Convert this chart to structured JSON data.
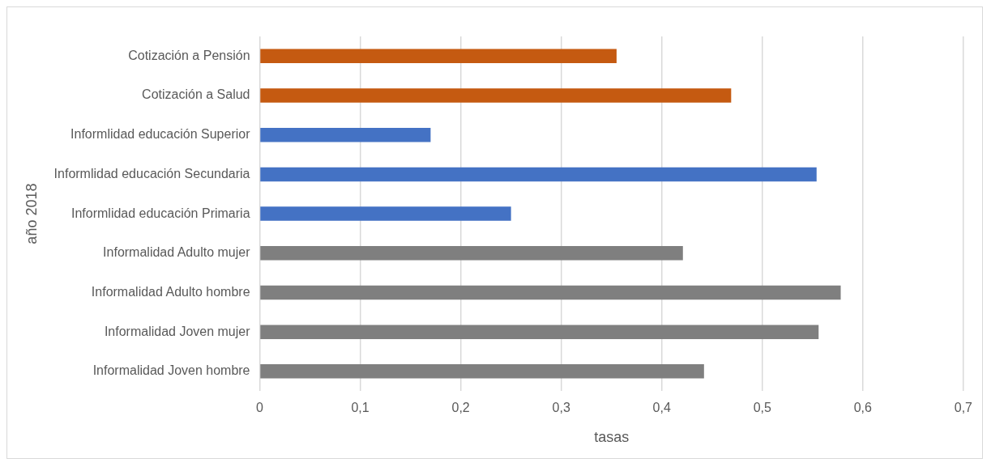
{
  "chart_data": {
    "type": "bar",
    "orientation": "horizontal",
    "categories": [
      "Cotización a Pensión",
      "Cotización a Salud",
      "Informlidad educación Superior",
      "Informlidad educación Secundaria",
      "Informlidad educación Primaria",
      "Informalidad Adulto mujer",
      "Informalidad Adulto hombre",
      "Informalidad Joven mujer",
      "Informalidad Joven hombre"
    ],
    "values": [
      0.355,
      0.469,
      0.17,
      0.554,
      0.25,
      0.421,
      0.578,
      0.556,
      0.442
    ],
    "colors": [
      "#c55a11",
      "#c55a11",
      "#4472c4",
      "#4472c4",
      "#4472c4",
      "#7f7f7f",
      "#7f7f7f",
      "#7f7f7f",
      "#7f7f7f"
    ],
    "xlabel": "tasas",
    "ylabel": "año 2018",
    "xlim": [
      0,
      0.7
    ],
    "xticks": [
      0,
      {
        "value": 0.1,
        "label": "0,1"
      },
      {
        "value": 0.2,
        "label": "0,2"
      },
      {
        "value": 0.3,
        "label": "0,3"
      },
      {
        "value": 0.4,
        "label": "0,4"
      },
      {
        "value": 0.5,
        "label": "0,5"
      },
      {
        "value": 0.6,
        "label": "0,6"
      },
      {
        "value": 0.7,
        "label": "0,7"
      }
    ],
    "grid": "x",
    "legend": false
  }
}
